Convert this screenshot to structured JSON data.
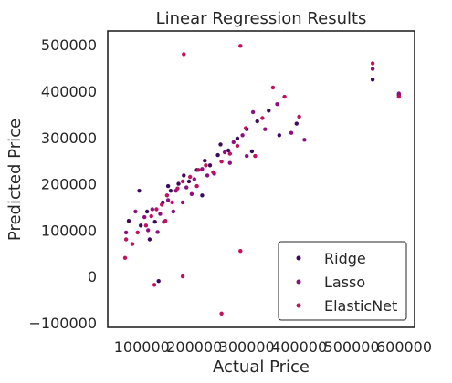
{
  "chart_data": {
    "type": "scatter",
    "title": "Linear Regression Results",
    "xlabel": "Actual Price",
    "ylabel": "Predicted Price",
    "xlim": [
      35000,
      620000
    ],
    "ylim": [
      -110000,
      530000
    ],
    "xticks": [
      100000,
      200000,
      300000,
      400000,
      500000,
      600000
    ],
    "xtick_labels": [
      "100000",
      "200000",
      "300000",
      "400000",
      "500000",
      "600000"
    ],
    "yticks": [
      -100000,
      0,
      100000,
      200000,
      300000,
      400000,
      500000
    ],
    "ytick_labels": [
      "−100000",
      "0",
      "100000",
      "200000",
      "300000",
      "400000",
      "500000"
    ],
    "grid": false,
    "legend_position": "lower-right",
    "series": [
      {
        "name": "Ridge",
        "color": "#3d0a5e",
        "points": [
          [
            75000,
            120000
          ],
          [
            95000,
            185000
          ],
          [
            110000,
            140000
          ],
          [
            125000,
            118000
          ],
          [
            140000,
            160000
          ],
          [
            155000,
            185000
          ],
          [
            170000,
            200000
          ],
          [
            190000,
            205000
          ],
          [
            205000,
            230000
          ],
          [
            220000,
            250000
          ],
          [
            245000,
            262000
          ],
          [
            265000,
            272000
          ],
          [
            282000,
            298000
          ],
          [
            300000,
            318000
          ],
          [
            320000,
            335000
          ],
          [
            342000,
            358000
          ],
          [
            362000,
            305000
          ],
          [
            395000,
            330000
          ],
          [
            540000,
            425000
          ],
          [
            590000,
            392000
          ],
          [
            132000,
            -10000
          ],
          [
            150000,
            195000
          ],
          [
            180000,
            218000
          ],
          [
            115000,
            80000
          ],
          [
            250000,
            285000
          ],
          [
            230000,
            240000
          ],
          [
            310000,
            270000
          ],
          [
            160000,
            140000
          ],
          [
            98000,
            110000
          ],
          [
            215000,
            175000
          ]
        ]
      },
      {
        "name": "Lasso",
        "color": "#8e1080",
        "points": [
          [
            70000,
            95000
          ],
          [
            88000,
            140000
          ],
          [
            105000,
            128000
          ],
          [
            120000,
            145000
          ],
          [
            135000,
            135000
          ],
          [
            150000,
            165000
          ],
          [
            165000,
            185000
          ],
          [
            185000,
            192000
          ],
          [
            200000,
            210000
          ],
          [
            215000,
            232000
          ],
          [
            238000,
            222000
          ],
          [
            258000,
            268000
          ],
          [
            275000,
            290000
          ],
          [
            292000,
            305000
          ],
          [
            312000,
            355000
          ],
          [
            335000,
            318000
          ],
          [
            358000,
            372000
          ],
          [
            385000,
            310000
          ],
          [
            410000,
            295000
          ],
          [
            540000,
            448000
          ],
          [
            590000,
            395000
          ],
          [
            160000,
            140000
          ],
          [
            178000,
            160000
          ],
          [
            142000,
            118000
          ],
          [
            300000,
            260000
          ],
          [
            225000,
            218000
          ],
          [
            130000,
            96000
          ],
          [
            195000,
            178000
          ],
          [
            268000,
            245000
          ],
          [
            112000,
            100000
          ]
        ]
      },
      {
        "name": "ElasticNet",
        "color": "#c2105e",
        "points": [
          [
            68000,
            40000
          ],
          [
            82000,
            70000
          ],
          [
            92000,
            95000
          ],
          [
            108000,
            110000
          ],
          [
            118000,
            130000
          ],
          [
            128000,
            145000
          ],
          [
            138000,
            155000
          ],
          [
            148000,
            175000
          ],
          [
            158000,
            160000
          ],
          [
            168000,
            190000
          ],
          [
            178000,
            205000
          ],
          [
            192000,
            215000
          ],
          [
            208000,
            230000
          ],
          [
            222000,
            240000
          ],
          [
            236000,
            225000
          ],
          [
            252000,
            248000
          ],
          [
            268000,
            265000
          ],
          [
            282000,
            282000
          ],
          [
            298000,
            320000
          ],
          [
            316000,
            260000
          ],
          [
            330000,
            342000
          ],
          [
            350000,
            408000
          ],
          [
            372000,
            388000
          ],
          [
            400000,
            345000
          ],
          [
            540000,
            460000
          ],
          [
            590000,
            388000
          ],
          [
            180000,
            480000
          ],
          [
            288000,
            498000
          ],
          [
            178000,
            0
          ],
          [
            288000,
            55000
          ],
          [
            252000,
            -80000
          ],
          [
            70000,
            80000
          ],
          [
            145000,
            120000
          ],
          [
            205000,
            195000
          ],
          [
            124000,
            -18000
          ]
        ]
      }
    ]
  }
}
